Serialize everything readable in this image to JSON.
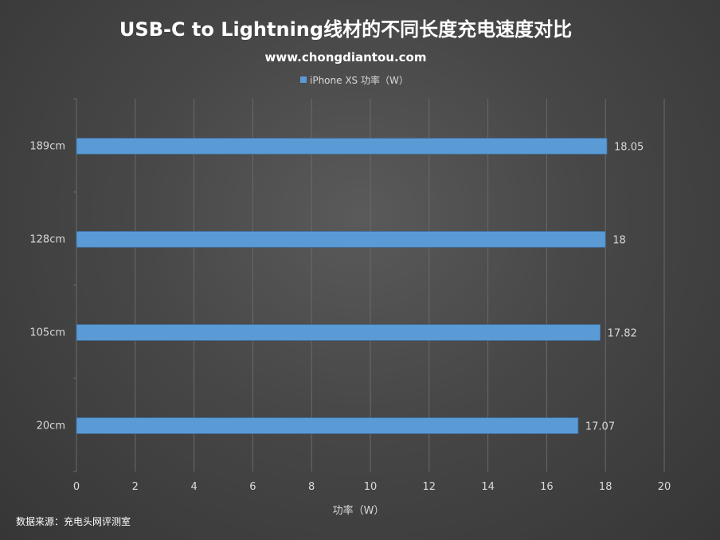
{
  "chart_data": {
    "type": "bar",
    "orientation": "horizontal",
    "title": "USB-C to Lightning线材的不同长度充电速度对比",
    "subtitle": "www.chongdiantou.com",
    "categories": [
      "189cm",
      "128cm",
      "105cm",
      "20cm"
    ],
    "series": [
      {
        "name": "iPhone XS 功率（W）",
        "values": [
          18.05,
          18,
          17.82,
          17.07
        ]
      }
    ],
    "data_labels": [
      "18.05",
      "18",
      "17.82",
      "17.07"
    ],
    "xlabel": "功率（W）",
    "ylabel": "",
    "xlim": [
      0,
      20
    ],
    "xticks": [
      "0",
      "2",
      "4",
      "6",
      "8",
      "10",
      "12",
      "14",
      "16",
      "18",
      "20"
    ],
    "grid": "vertical",
    "legend": "top-center",
    "source": "数据来源：充电头网评测室",
    "colors": {
      "bar": "#5B9BD5",
      "grid": "#6a6a6a",
      "text": "#ffffff",
      "tick_text": "#d9d9d9"
    }
  }
}
